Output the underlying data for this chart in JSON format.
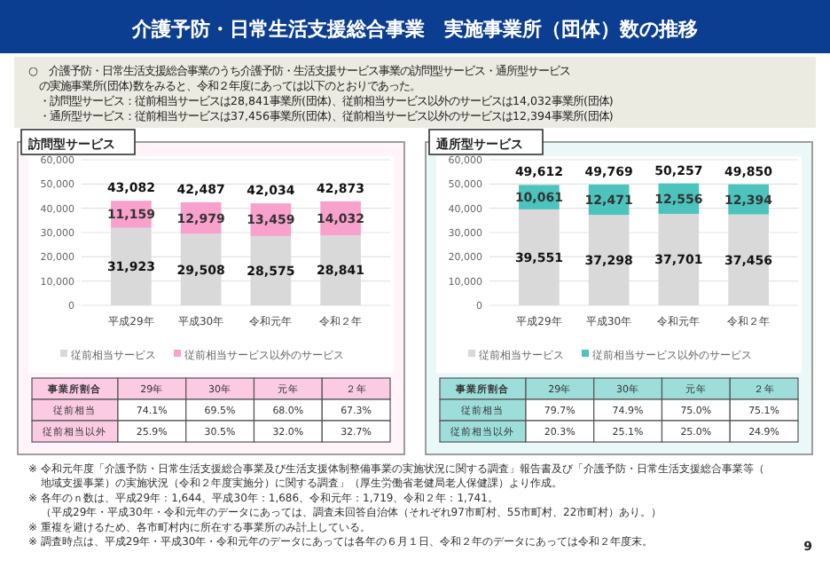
{
  "chart_data": [
    {
      "type": "other",
      "title": "介護予防・日常生活支援総合事業　実施事業所（団体）数の推移",
      "subtitle": "○　介護予防・日常生活支援総合事業のうち介護予防・生活支援サービス事業の訪問型サービス・通所型サービスの実施事業所(団体)数をみると、令和２年度にあっては以下のとおりであった。",
      "annotations": [
        "・訪問型サービス：従前相当サービスは28,841事業所(団体)、従前相当サービス以外のサービスは14,032事業所(団体)",
        "・通所型サービス：従前相当サービスは37,456事業所(団体)、従前相当サービス以外のサービスは12,394事業所(団体)",
        "※ 令和元年度「介護予防・日常生活支援総合事業及び生活支援体制整備事業の実施状況に関する調査」報告書及び「介護予防・日常生活支援総合事業等（地域支援事業）の実施状況（令和２年度実施分）に関する調査」（厚生労働省老健局老人保健課）より作成。",
        "※ 各年のｎ数は、平成29年：1,644、平成30年：1,686、令和元年：1,719、令和２年：1,741。",
        "（平成29年・平成30年・令和元年のデータにあっては、調査未回答自治体（それぞれ97市町村、55市町村、22市町村）あり。）",
        "※ 重複を避けるため、各市町村内に所在する事業所のみ計上している。",
        "※ 調査時点は、平成29年・平成30年・令和元年のデータにあっては各年の６月１日、令和２年のデータにあっては令和２年度末。",
        "9"
      ]
    },
    {
      "type": "bar",
      "title": "訪問型サービス",
      "categories": [
        "平成29年",
        "平成30年",
        "令和元年",
        "令和２年"
      ],
      "stacked": true,
      "series": [
        {
          "name": "従前相当サービス",
          "color": "#d9d9d9",
          "values": [
            31923,
            29508,
            28575,
            28841
          ],
          "value_labels": [
            "31,923",
            "29,508",
            "28,575",
            "28,841"
          ]
        },
        {
          "name": "従前相当サービス以外のサービス",
          "color": "#f7a1cc",
          "values": [
            11159,
            12979,
            13459,
            14032
          ],
          "value_labels": [
            "11,159",
            "12,979",
            "13,459",
            "14,032"
          ]
        }
      ],
      "totals": [
        "43,082",
        "42,487",
        "42,034",
        "42,873"
      ],
      "ylim": [
        0,
        60000
      ],
      "yticks": [
        0,
        {
          "value": 10000,
          "label": "10,000"
        },
        {
          "value": 20000,
          "label": "20,000"
        },
        {
          "value": 30000,
          "label": "30,000"
        },
        {
          "value": 40000,
          "label": "40,000"
        },
        {
          "value": 50000,
          "label": "50,000"
        },
        {
          "value": 60000,
          "label": "60,000"
        }
      ],
      "grid": "y",
      "legend": "bottom",
      "annotations": [
        "事業所割合",
        "29年",
        "30年",
        "元年",
        "２年",
        "従前相当",
        "74.1%",
        "69.5%",
        "68.0%",
        "67.3%",
        "従前相当以外",
        "25.9%",
        "30.5%",
        "32.0%",
        "32.7%"
      ]
    },
    {
      "type": "bar",
      "title": "通所型サービス",
      "categories": [
        "平成29年",
        "平成30年",
        "令和元年",
        "令和２年"
      ],
      "stacked": true,
      "series": [
        {
          "name": "従前相当サービス",
          "color": "#d9d9d9",
          "values": [
            39551,
            37298,
            37701,
            37456
          ],
          "value_labels": [
            "39,551",
            "37,298",
            "37,701",
            "37,456"
          ]
        },
        {
          "name": "従前相当サービス以外のサービス",
          "color": "#4cc3bd",
          "values": [
            10061,
            12471,
            12556,
            12394
          ],
          "value_labels": [
            "10,061",
            "12,471",
            "12,556",
            "12,394"
          ]
        }
      ],
      "totals": [
        "49,612",
        "49,769",
        "50,257",
        "49,850"
      ],
      "ylim": [
        0,
        60000
      ],
      "yticks": [
        0,
        {
          "value": 10000,
          "label": "10,000"
        },
        {
          "value": 20000,
          "label": "20,000"
        },
        {
          "value": 30000,
          "label": "30,000"
        },
        {
          "value": 40000,
          "label": "40,000"
        },
        {
          "value": 50000,
          "label": "50,000"
        },
        {
          "value": 60000,
          "label": "60,000"
        }
      ],
      "grid": "y",
      "legend": "bottom",
      "annotations": [
        "事業所割合",
        "29年",
        "30年",
        "元年",
        "２年",
        "従前相当",
        "79.7%",
        "74.9%",
        "75.0%",
        "75.1%",
        "従前相当以外",
        "20.3%",
        "25.1%",
        "25.0%",
        "24.9%"
      ]
    }
  ]
}
